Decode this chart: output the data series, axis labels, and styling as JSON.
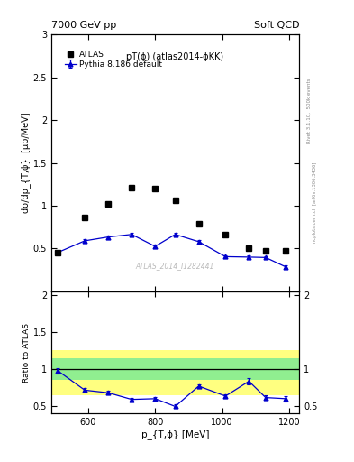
{
  "title_left": "7000 GeV pp",
  "title_right": "Soft QCD",
  "plot_title": "pT(ϕ) (atlas2014-ϕKK)",
  "watermark": "ATLAS_2014_I1282441",
  "right_label_top": "Rivet 3.1.10,  500k events",
  "right_label_bot": "mcplots.cern.ch [arXiv:1306.3436]",
  "ylabel_main": "dσ/dp_{T,ϕ}  [μb/MeV]",
  "ylabel_ratio": "Ratio to ATLAS",
  "xlabel": "p_{T,ϕ} [MeV]",
  "xlim": [
    490,
    1230
  ],
  "ylim_main": [
    0,
    3.0
  ],
  "ylim_ratio": [
    0.4,
    2.05
  ],
  "atlas_x": [
    510,
    590,
    660,
    730,
    800,
    860,
    930,
    1010,
    1080,
    1130,
    1190
  ],
  "atlas_y": [
    0.455,
    0.865,
    1.02,
    1.21,
    1.2,
    1.065,
    0.785,
    0.665,
    0.5,
    0.475,
    0.47
  ],
  "pythia_x": [
    510,
    590,
    660,
    730,
    800,
    860,
    930,
    1010,
    1080,
    1130,
    1190
  ],
  "pythia_y": [
    0.455,
    0.59,
    0.635,
    0.665,
    0.525,
    0.665,
    0.58,
    0.405,
    0.4,
    0.395,
    0.285
  ],
  "pythia_yerr": [
    0.02,
    0.02,
    0.02,
    0.02,
    0.02,
    0.02,
    0.02,
    0.02,
    0.015,
    0.015,
    0.015
  ],
  "ratio_x": [
    510,
    590,
    660,
    730,
    800,
    860,
    930,
    1010,
    1080,
    1130,
    1190
  ],
  "ratio_y": [
    0.975,
    0.715,
    0.68,
    0.59,
    0.6,
    0.495,
    0.77,
    0.635,
    0.835,
    0.615,
    0.6
  ],
  "ratio_yerr": [
    0.04,
    0.025,
    0.025,
    0.025,
    0.025,
    0.025,
    0.025,
    0.025,
    0.04,
    0.035,
    0.035
  ],
  "band_yellow_lo": 0.65,
  "band_yellow_hi": 1.25,
  "band_green_lo": 0.85,
  "band_green_hi": 1.15,
  "atlas_color": "#000000",
  "pythia_color": "#0000cc",
  "green_band_color": "#90ee90",
  "yellow_band_color": "#ffff80"
}
